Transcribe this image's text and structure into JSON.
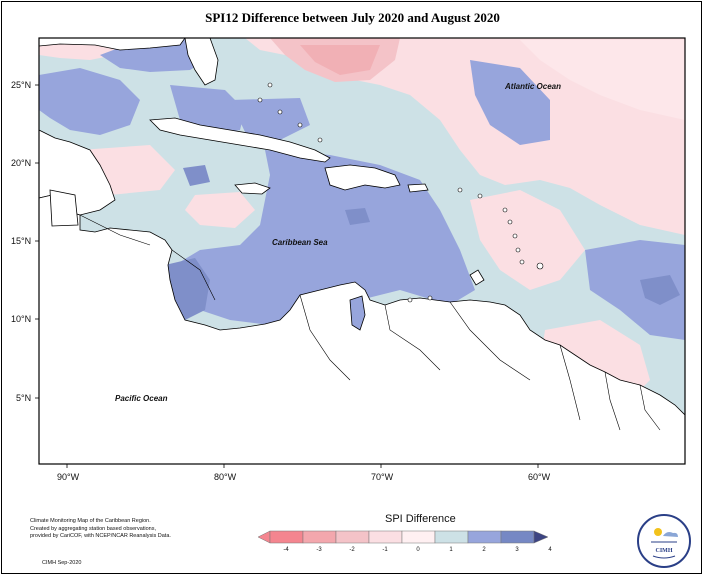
{
  "title": "SPI12 Difference between July 2020 and August 2020",
  "ocean_labels": {
    "atlantic": "Atlantic Ocean",
    "caribbean": "Caribbean Sea",
    "pacific": "Pacific Ocean"
  },
  "lat_ticks": [
    "25°N",
    "20°N",
    "15°N",
    "10°N",
    "5°N"
  ],
  "lon_ticks": [
    "90°W",
    "80°W",
    "70°W",
    "60°W"
  ],
  "legend": {
    "title": "SPI Difference",
    "values": [
      "-4",
      "-3",
      "-2",
      "-1",
      "0",
      "1",
      "2",
      "3",
      "4"
    ],
    "colors": [
      "#f4858f",
      "#f3a7ad",
      "#f4c3c8",
      "#fbdfe3",
      "#fff0f2",
      "#cde1e6",
      "#97a5dc",
      "#7688c4",
      "#59649b",
      "#3d4482",
      "#fde7ea"
    ]
  },
  "credits": {
    "line1": "Climate Monitoring Map of the Caribbean Region.",
    "line2": "Created by aggregating station based observations,",
    "line3": "provided by CariCOF, with NCEP/NCAR Reanalysis Data.",
    "date": "CIMH Sep-2020"
  },
  "logo_text": "CIMH",
  "colors": {
    "land": "#ffffff",
    "neutral_pos": "#cde1e6",
    "neutral_neg": "#fbdfe3",
    "pos1": "#97a5dc",
    "pos2": "#7f8fc9",
    "neg1": "#f4c3c8",
    "neg2": "#f1b0b5"
  }
}
